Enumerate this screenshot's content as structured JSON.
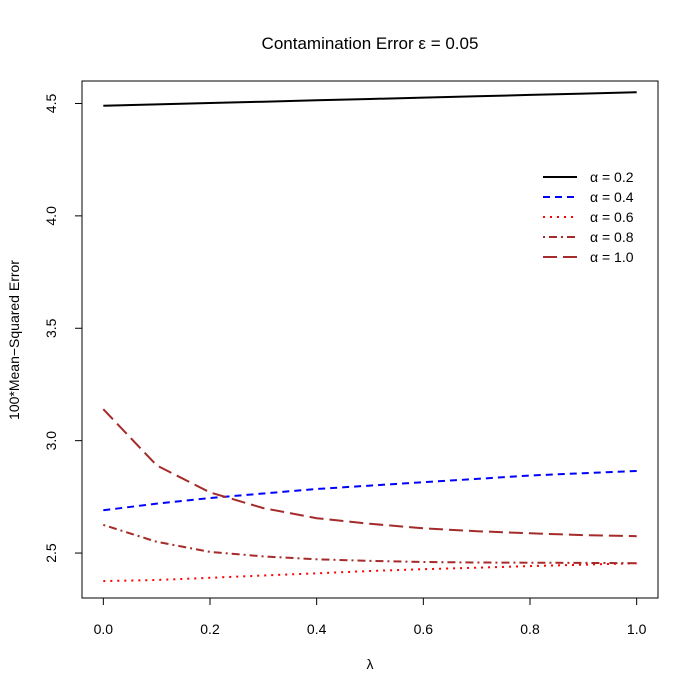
{
  "chart_data": {
    "type": "line",
    "title": "Contamination Error ε = 0.05",
    "xlabel": "λ",
    "ylabel": "100*Mean−Squared Error",
    "xlim": [
      -0.04,
      1.04
    ],
    "ylim": [
      2.3,
      4.6
    ],
    "xticks": [
      "0.0",
      "0.2",
      "0.4",
      "0.6",
      "0.8",
      "1.0"
    ],
    "yticks": [
      "2.5",
      "3.0",
      "3.5",
      "4.0",
      "4.5"
    ],
    "grid": false,
    "legend_position": "right",
    "x": [
      0.0,
      0.1,
      0.2,
      0.3,
      0.4,
      0.5,
      0.6,
      0.7,
      0.8,
      0.9,
      1.0
    ],
    "series": [
      {
        "name": "α = 0.2",
        "color": "#000000",
        "dash": "solid",
        "values": [
          4.49,
          4.496,
          4.502,
          4.508,
          4.514,
          4.52,
          4.526,
          4.532,
          4.538,
          4.544,
          4.55
        ]
      },
      {
        "name": "α = 0.4",
        "color": "#0000ff",
        "dash": "dashed",
        "values": [
          2.69,
          2.72,
          2.745,
          2.765,
          2.785,
          2.8,
          2.815,
          2.83,
          2.845,
          2.855,
          2.865
        ]
      },
      {
        "name": "α = 0.6",
        "color": "#ff0000",
        "dash": "dotted",
        "values": [
          2.375,
          2.38,
          2.39,
          2.4,
          2.41,
          2.42,
          2.428,
          2.435,
          2.442,
          2.448,
          2.455
        ]
      },
      {
        "name": "α = 0.8",
        "color": "#a52a2a",
        "dash": "dotdash",
        "values": [
          2.625,
          2.55,
          2.505,
          2.485,
          2.472,
          2.465,
          2.46,
          2.458,
          2.457,
          2.456,
          2.455
        ]
      },
      {
        "name": "α = 1.0",
        "color": "#a52a2a",
        "dash": "longdash",
        "values": [
          3.14,
          2.89,
          2.77,
          2.7,
          2.655,
          2.63,
          2.61,
          2.597,
          2.588,
          2.58,
          2.575
        ]
      }
    ]
  }
}
